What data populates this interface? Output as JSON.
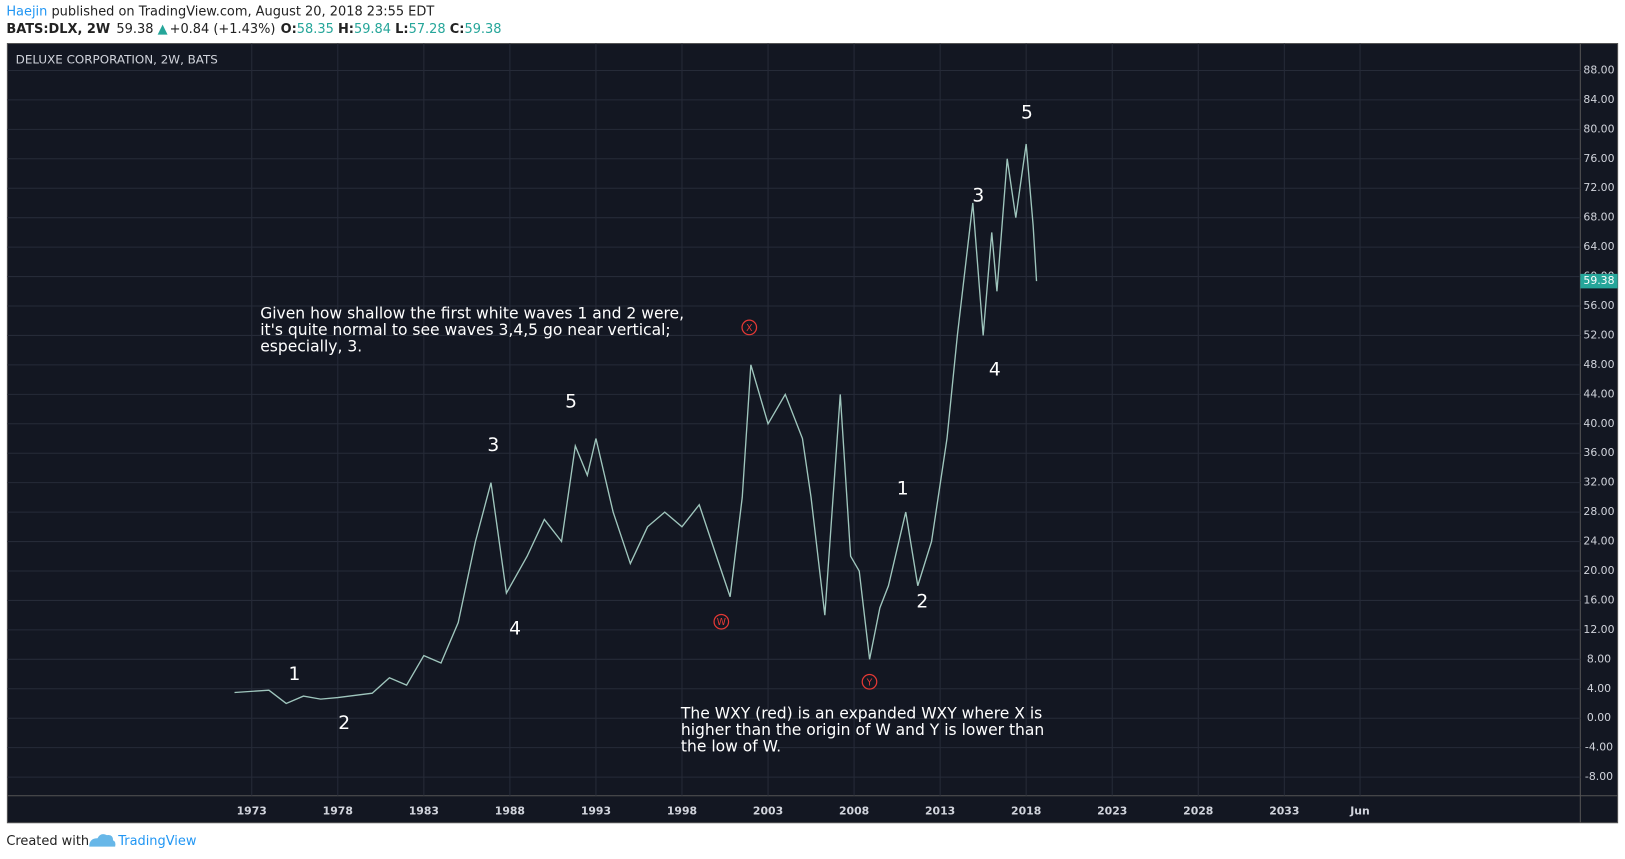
{
  "header": {
    "author": "Haejin",
    "published": " published on TradingView.com, August 20, 2018 23:55 EDT",
    "symbol": "BATS:DLX, 2W",
    "last": "59.38",
    "change": "+0.84 (+1.43%)",
    "o_label": "O:",
    "o": "58.35",
    "h_label": "H:",
    "h": "59.84",
    "l_label": "L:",
    "l": "57.28",
    "c_label": "C:",
    "c": "59.38"
  },
  "chart_data": {
    "type": "line",
    "title": "DELUXE CORPORATION, 2W, BATS",
    "color": "#9fc6bd",
    "grid": true,
    "price_label": "59.38",
    "x": [
      1972,
      1974,
      1975,
      1976,
      1977,
      1978,
      1980,
      1981,
      1982,
      1983,
      1984,
      1985,
      1986,
      1986.9,
      1987.8,
      1989,
      1990,
      1991,
      1991.8,
      1992.5,
      1993,
      1994,
      1995,
      1996,
      1997,
      1998,
      1999,
      2000,
      2000.8,
      2001.5,
      2002,
      2003,
      2004,
      2005,
      2005.5,
      2006.3,
      2007.2,
      2007.8,
      2008.3,
      2008.9,
      2009.5,
      2010,
      2011,
      2011.7,
      2012.5,
      2013.4,
      2014,
      2014.9,
      2015.5,
      2016,
      2016.3,
      2016.9,
      2017.4,
      2018,
      2018.4,
      2018.6
    ],
    "values": [
      3.5,
      3.8,
      2.0,
      3.0,
      2.6,
      2.8,
      3.4,
      5.5,
      4.5,
      8.5,
      7.5,
      13,
      24,
      32,
      17,
      22,
      27,
      24,
      37,
      33,
      38,
      28,
      21,
      26,
      28,
      26,
      29,
      22,
      16.5,
      30,
      48,
      40,
      44,
      38,
      30,
      14,
      44,
      22,
      20,
      8,
      15,
      18,
      28,
      18,
      24,
      38,
      52,
      70,
      52,
      66,
      58,
      76,
      68,
      78,
      67,
      59.38
    ],
    "xlim": [
      1958.8,
      2050.2
    ],
    "xticks": [
      1973,
      1978,
      1983,
      1988,
      1993,
      1998,
      2003,
      2008,
      2013,
      2018,
      2023,
      2028,
      2033,
      {
        "value": 2037.4,
        "label": "Jun"
      }
    ],
    "ylim": [
      -10.54,
      91.66
    ],
    "yticks": [
      {
        "value": -8,
        "label": "-8.00"
      },
      {
        "value": -4,
        "label": "-4.00"
      },
      {
        "value": 0,
        "label": "0.00"
      },
      {
        "value": 4,
        "label": "4.00"
      },
      {
        "value": 8,
        "label": "8.00"
      },
      {
        "value": 12,
        "label": "12.00"
      },
      {
        "value": 16,
        "label": "16.00"
      },
      {
        "value": 20,
        "label": "20.00"
      },
      {
        "value": 24,
        "label": "24.00"
      },
      {
        "value": 28,
        "label": "28.00"
      },
      {
        "value": 32,
        "label": "32.00"
      },
      {
        "value": 36,
        "label": "36.00"
      },
      {
        "value": 40,
        "label": "40.00"
      },
      {
        "value": 44,
        "label": "44.00"
      },
      {
        "value": 48,
        "label": "48.00"
      },
      {
        "value": 52,
        "label": "52.00"
      },
      {
        "value": 56,
        "label": "56.00"
      },
      {
        "value": 60,
        "label": "60.00"
      },
      {
        "value": 64,
        "label": "64.00"
      },
      {
        "value": 68,
        "label": "68.00"
      },
      {
        "value": 72,
        "label": "72.00"
      },
      {
        "value": 76,
        "label": "76.00"
      },
      {
        "value": 80,
        "label": "80.00"
      },
      {
        "value": 84,
        "label": "84.00"
      },
      {
        "value": 88,
        "label": "88.00"
      }
    ],
    "wave_labels": [
      "1",
      "2",
      "3",
      "4",
      "5",
      "1",
      "2",
      "3",
      "4",
      "5"
    ],
    "circle_labels": [
      "X",
      "W",
      "Y"
    ],
    "notes": [
      [
        "Given how shallow the first white waves 1 and 2 were,",
        "it's quite normal to see waves 3,4,5 go near vertical;",
        "especially, 3."
      ],
      [
        "The WXY (red) is an expanded WXY where X is",
        "higher than the origin of W and Y is lower than",
        "the low of W."
      ]
    ]
  },
  "footer": {
    "created": "Created with",
    "brand": "TradingView"
  }
}
